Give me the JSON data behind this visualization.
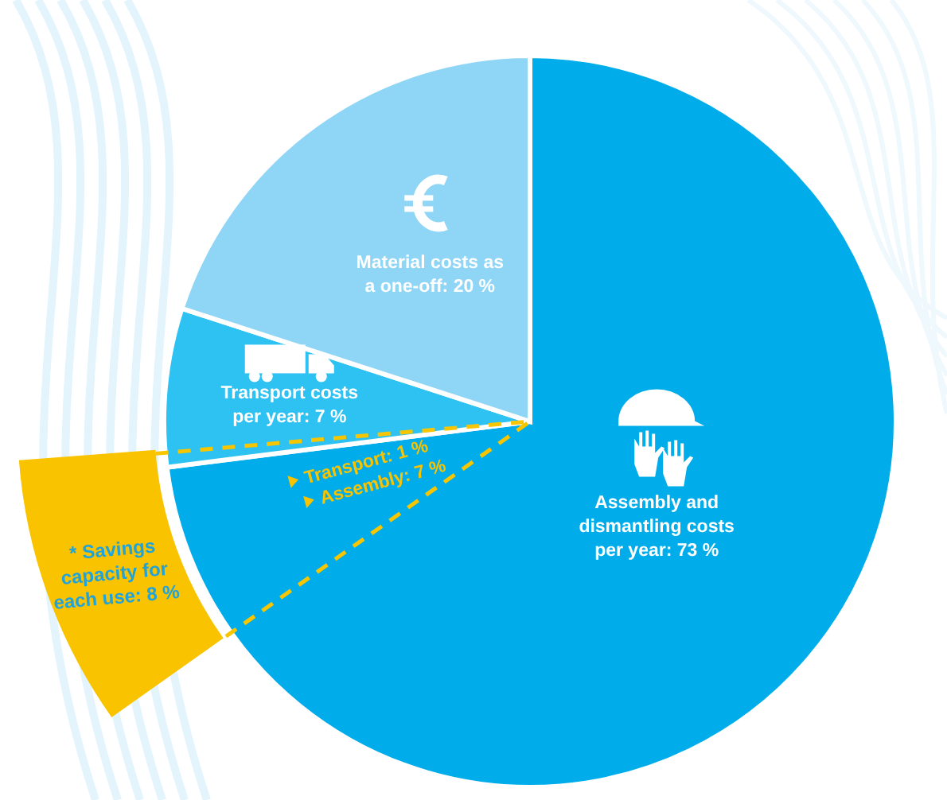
{
  "chart_data": {
    "type": "pie",
    "categories": [
      "Assembly and dismantling costs per year: 73 %",
      "Transport costs per year: 7 %",
      "Material costs as a one-off: 20 %"
    ],
    "values": [
      73,
      7,
      20
    ],
    "colors": [
      "#00adea",
      "#2ec2f2",
      "#8fd5f6"
    ],
    "annotations": [
      "* Savings capacity for each use: 8 %",
      "Transport: 1 %",
      "Assembly: 7 %"
    ]
  }
}
